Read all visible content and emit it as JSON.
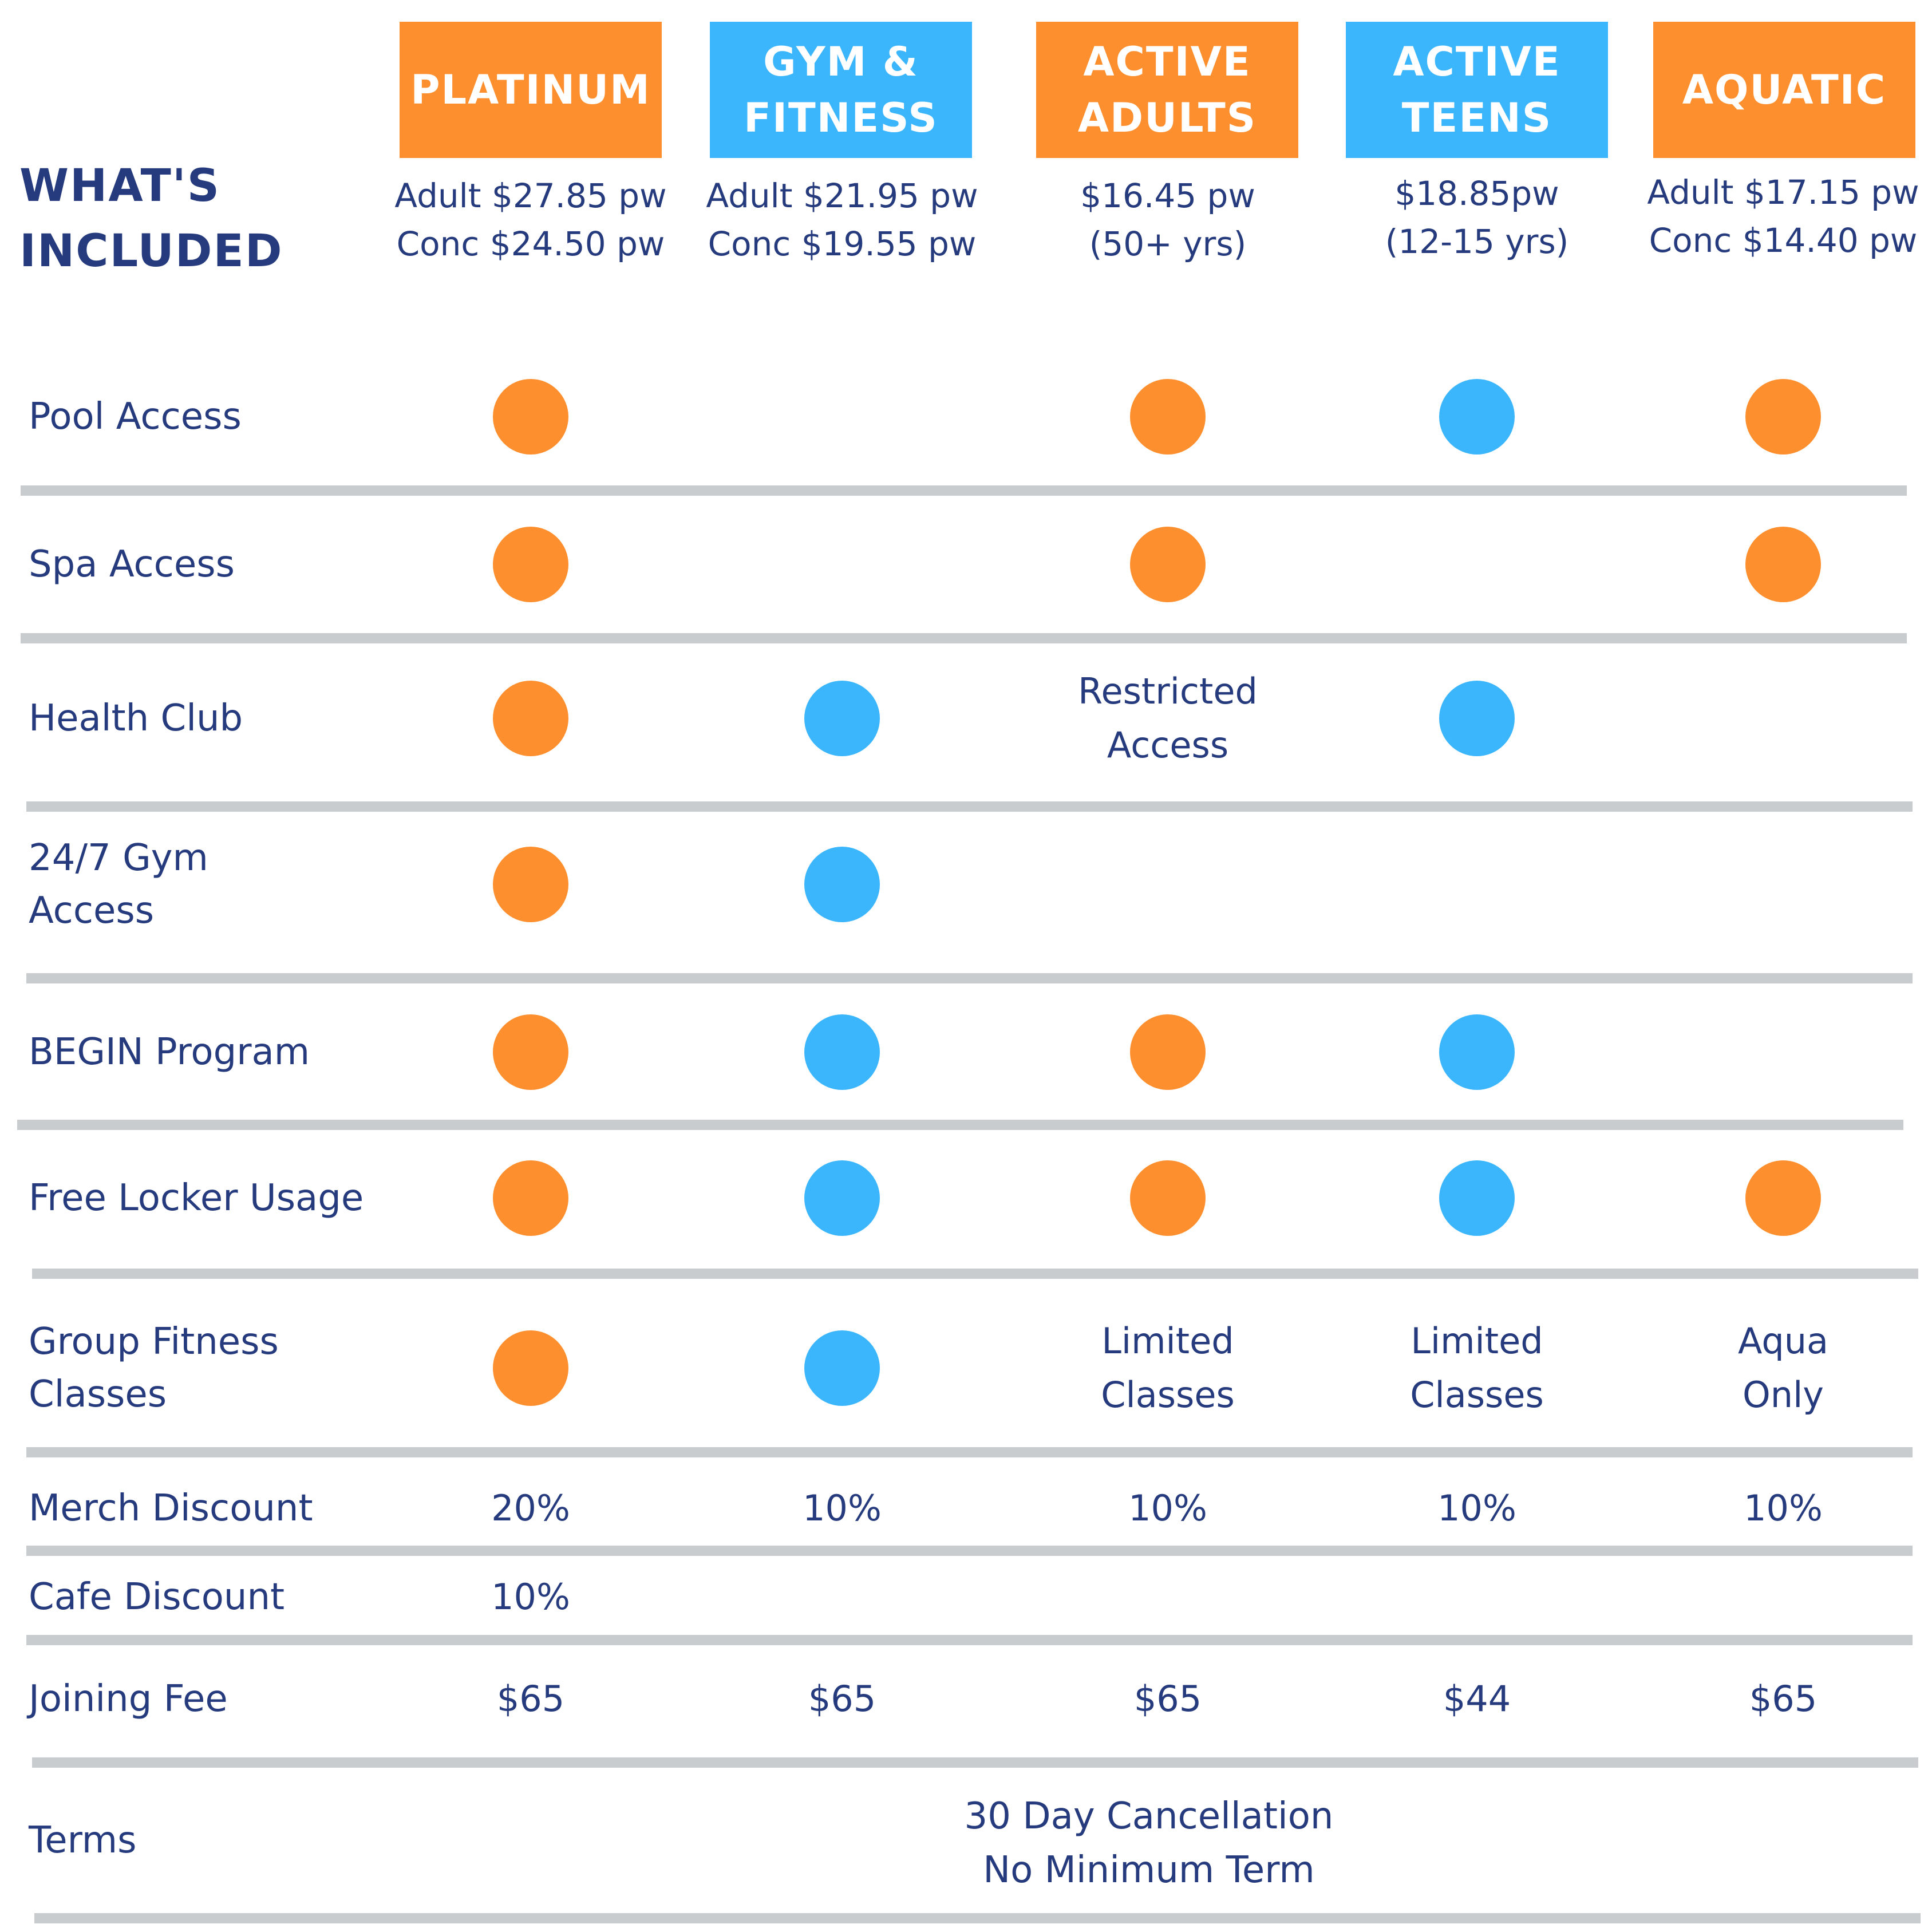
{
  "colors": {
    "orange": "#fe8f2f",
    "blue": "#3bb6fd",
    "navy": "#263b7d",
    "divider": "#c9ccce"
  },
  "header": {
    "title": "WHAT'S\nINCLUDED"
  },
  "plans": [
    {
      "name": "PLATINUM",
      "price": "Adult $27.85 pw\nConc $24.50 pw",
      "color": "orange"
    },
    {
      "name": "GYM &\nFITNESS",
      "price": "Adult $21.95 pw\nConc $19.55 pw",
      "color": "blue"
    },
    {
      "name": "ACTIVE\nADULTS",
      "price": "$16.45 pw\n(50+ yrs)",
      "color": "orange"
    },
    {
      "name": "ACTIVE\nTEENS",
      "price": "$18.85pw\n(12-15 yrs)",
      "color": "blue"
    },
    {
      "name": "AQUATIC",
      "price": "Adult $17.15 pw\nConc $14.40 pw",
      "color": "orange"
    }
  ],
  "rows": [
    {
      "label": "Pool Access",
      "cells": [
        "dot",
        "",
        "dot",
        "dot",
        "dot"
      ]
    },
    {
      "label": "Spa Access",
      "cells": [
        "dot",
        "",
        "dot",
        "",
        "dot"
      ]
    },
    {
      "label": "Health Club",
      "cells": [
        "dot",
        "dot",
        "Restricted\nAccess",
        "dot",
        ""
      ]
    },
    {
      "label": "24/7 Gym\nAccess",
      "cells": [
        "dot",
        "dot",
        "",
        "",
        ""
      ]
    },
    {
      "label": "BEGIN Program",
      "cells": [
        "dot",
        "dot",
        "dot",
        "dot",
        ""
      ]
    },
    {
      "label": "Free Locker Usage",
      "cells": [
        "dot",
        "dot",
        "dot",
        "dot",
        "dot"
      ]
    },
    {
      "label": "Group Fitness\nClasses",
      "cells": [
        "dot",
        "dot",
        "Limited\nClasses",
        "Limited\nClasses",
        "Aqua\nOnly"
      ]
    },
    {
      "label": "Merch Discount",
      "cells": [
        "20%",
        "10%",
        "10%",
        "10%",
        "10%"
      ]
    },
    {
      "label": "Cafe Discount",
      "cells": [
        "10%",
        "",
        "",
        "",
        ""
      ]
    },
    {
      "label": "Joining Fee",
      "cells": [
        "$65",
        "$65",
        "$65",
        "$44",
        "$65"
      ]
    }
  ],
  "terms": {
    "label": "Terms",
    "value": "30 Day Cancellation\nNo Minimum Term"
  }
}
